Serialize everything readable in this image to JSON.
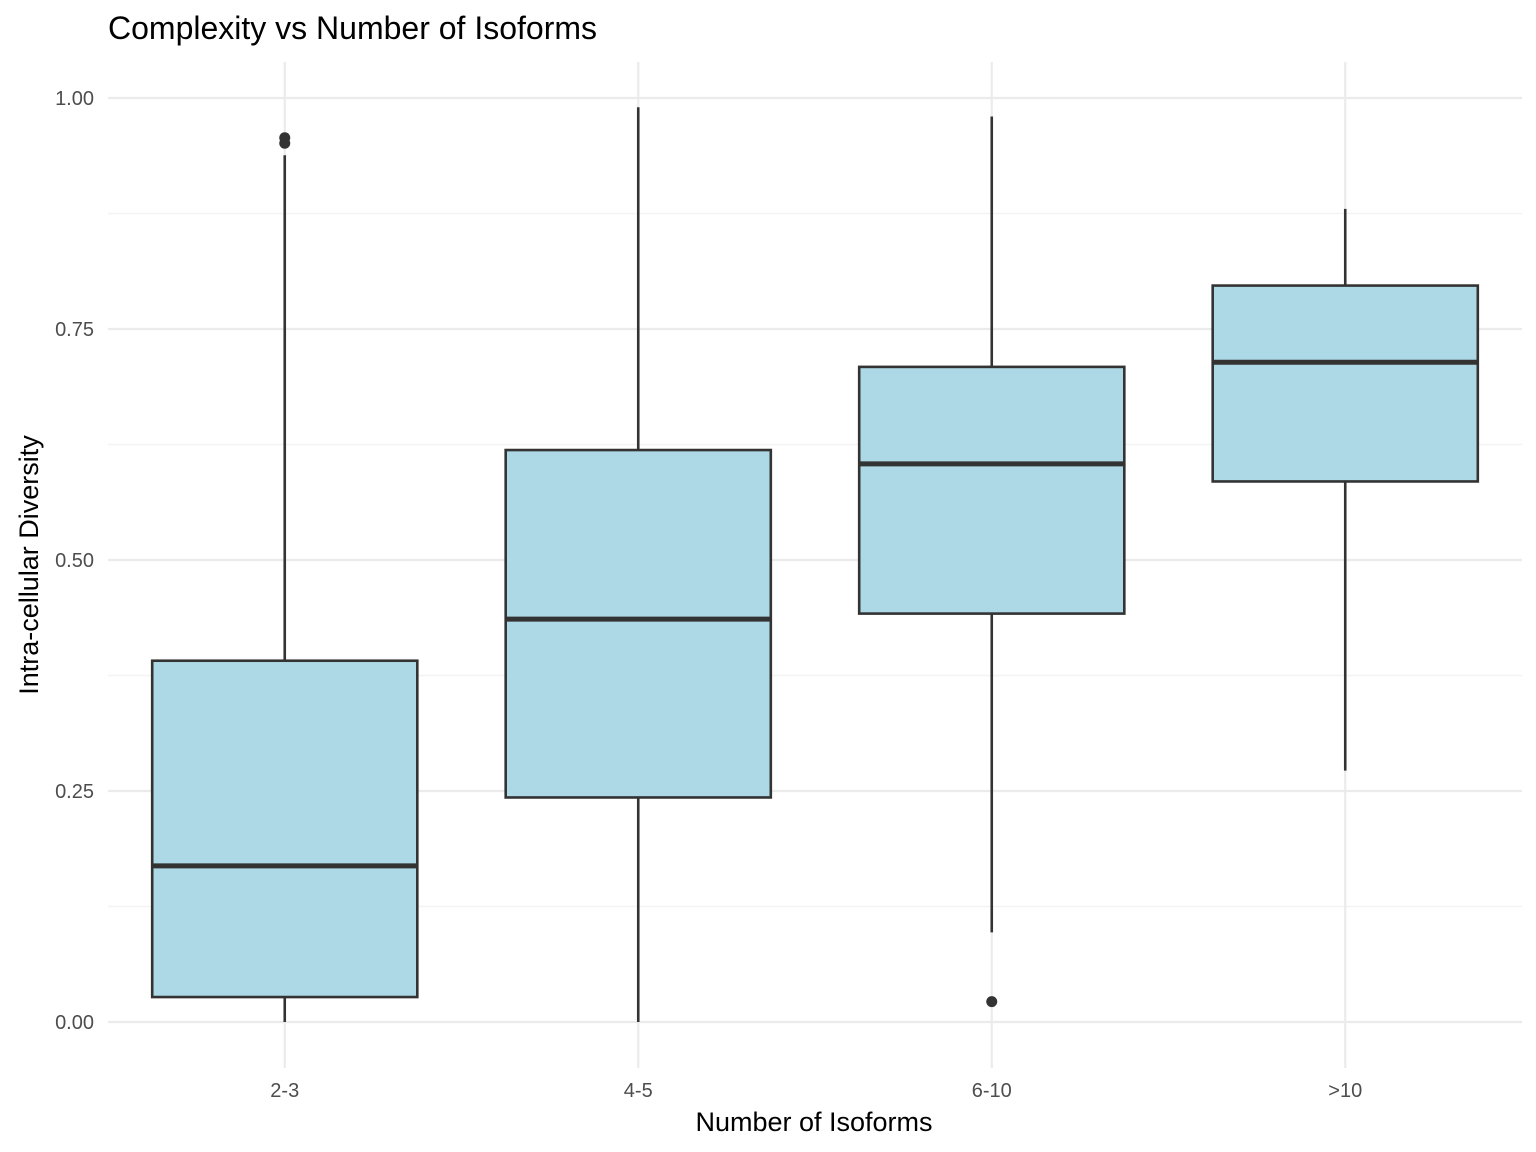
{
  "chart_data": {
    "type": "boxplot",
    "title": "Complexity vs Number of Isoforms",
    "xlabel": "Number of Isoforms",
    "ylabel": "Intra-cellular Diversity",
    "categories": [
      "2-3",
      "4-5",
      "6-10",
      ">10"
    ],
    "y_ticks": [
      "0.00",
      "0.25",
      "0.50",
      "0.75",
      "1.00"
    ],
    "ylim": [
      -0.05,
      1.04
    ],
    "grid": true,
    "box_fill": "#add8e6",
    "line_color": "#333333",
    "boxes": [
      {
        "category": "2-3",
        "whisker_low": 0.0,
        "q1": 0.027,
        "median": 0.169,
        "q3": 0.391,
        "whisker_high": 0.938,
        "outliers": [
          0.951,
          0.957
        ]
      },
      {
        "category": "4-5",
        "whisker_low": 0.0,
        "q1": 0.243,
        "median": 0.436,
        "q3": 0.619,
        "whisker_high": 0.99,
        "outliers": []
      },
      {
        "category": "6-10",
        "whisker_low": 0.097,
        "q1": 0.442,
        "median": 0.604,
        "q3": 0.709,
        "whisker_high": 0.98,
        "outliers": [
          0.022
        ]
      },
      {
        "category": ">10",
        "whisker_low": 0.272,
        "q1": 0.585,
        "median": 0.714,
        "q3": 0.797,
        "whisker_high": 0.88,
        "outliers": []
      }
    ]
  }
}
